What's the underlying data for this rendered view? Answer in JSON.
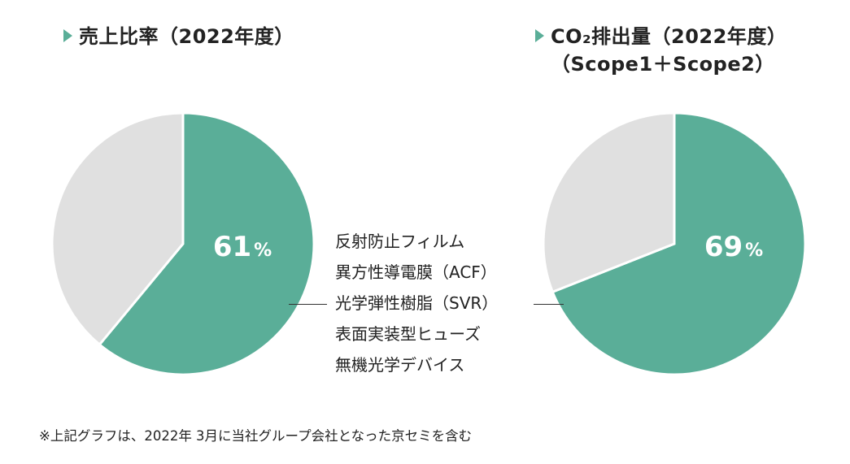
{
  "colors": {
    "product_share": "#5aae98",
    "other": "#e0e0e0",
    "marker": "#5aae98"
  },
  "chart_data": [
    {
      "type": "pie",
      "title": "売上比率（2022年度）",
      "slices": [
        {
          "name": "",
          "value": 61,
          "color": "#5aae98",
          "label": "61"
        },
        {
          "name": "",
          "value": 39,
          "color": "#e0e0e0",
          "label": ""
        }
      ],
      "unit": "%",
      "start": "12 o'clock",
      "direction": "clockwise"
    },
    {
      "type": "pie",
      "title": "CO₂排出量（2022年度）",
      "title_line2": "（Scope1＋Scope2）",
      "slices": [
        {
          "name": "",
          "value": 69,
          "color": "#5aae98",
          "label": "69"
        },
        {
          "name": "",
          "value": 31,
          "color": "#e0e0e0",
          "label": ""
        }
      ],
      "unit": "%",
      "start": "12 o'clock",
      "direction": "clockwise"
    }
  ],
  "products": [
    "反射防止フィルム",
    "異方性導電膜（ACF）",
    "光学弾性樹脂（SVR）",
    "表面実装型ヒューズ",
    "無機光学デバイス"
  ],
  "footnote": "※上記グラフは、2022年 3月に当社グループ会社となった京セミを含む"
}
